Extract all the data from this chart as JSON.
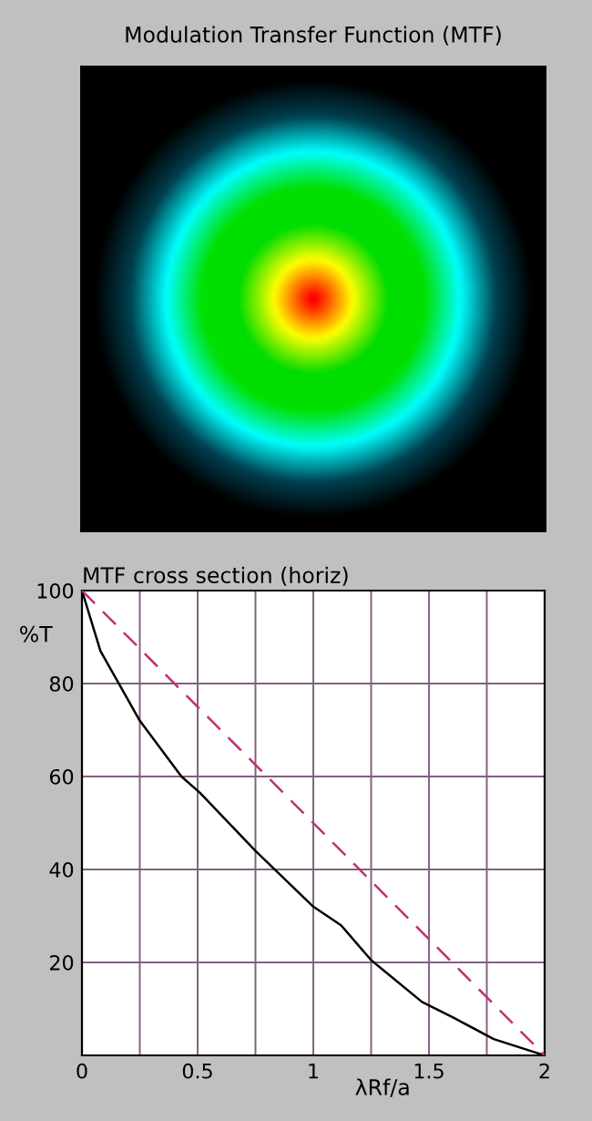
{
  "chart_data": [
    {
      "type": "other",
      "title": "Modulation Transfer Function (MTF)"
    },
    {
      "type": "line",
      "title": "MTF cross section (horiz)",
      "xlabel": "λRf/a",
      "ylabel": "%T",
      "xlim": [
        0,
        2
      ],
      "ylim": [
        0,
        100
      ],
      "xticks": [
        0,
        {
          "value": 0.25,
          "label": null
        },
        {
          "value": 0.5,
          "label": "0.5"
        },
        {
          "value": 0.75,
          "label": null
        },
        1,
        {
          "value": 1.25,
          "label": null
        },
        {
          "value": 1.5,
          "label": "1.5"
        },
        {
          "value": 1.75,
          "label": null
        },
        2
      ],
      "yticks": [
        20,
        40,
        60,
        80,
        100
      ],
      "grid": true,
      "legend": false,
      "series": [
        {
          "color": "#000000",
          "line_style": "solid",
          "x": [
            0,
            0.08,
            0.25,
            0.43,
            0.51,
            0.75,
            1.0,
            1.12,
            1.25,
            1.47,
            1.61,
            1.78,
            2
          ],
          "values": [
            100,
            87,
            72,
            60,
            56.5,
            44,
            32,
            28,
            20.5,
            11.5,
            8,
            3.5,
            0
          ]
        },
        {
          "color": "#c03070",
          "line_style": "dashed",
          "x": [
            0,
            2
          ],
          "values": [
            100,
            0
          ]
        }
      ]
    }
  ]
}
